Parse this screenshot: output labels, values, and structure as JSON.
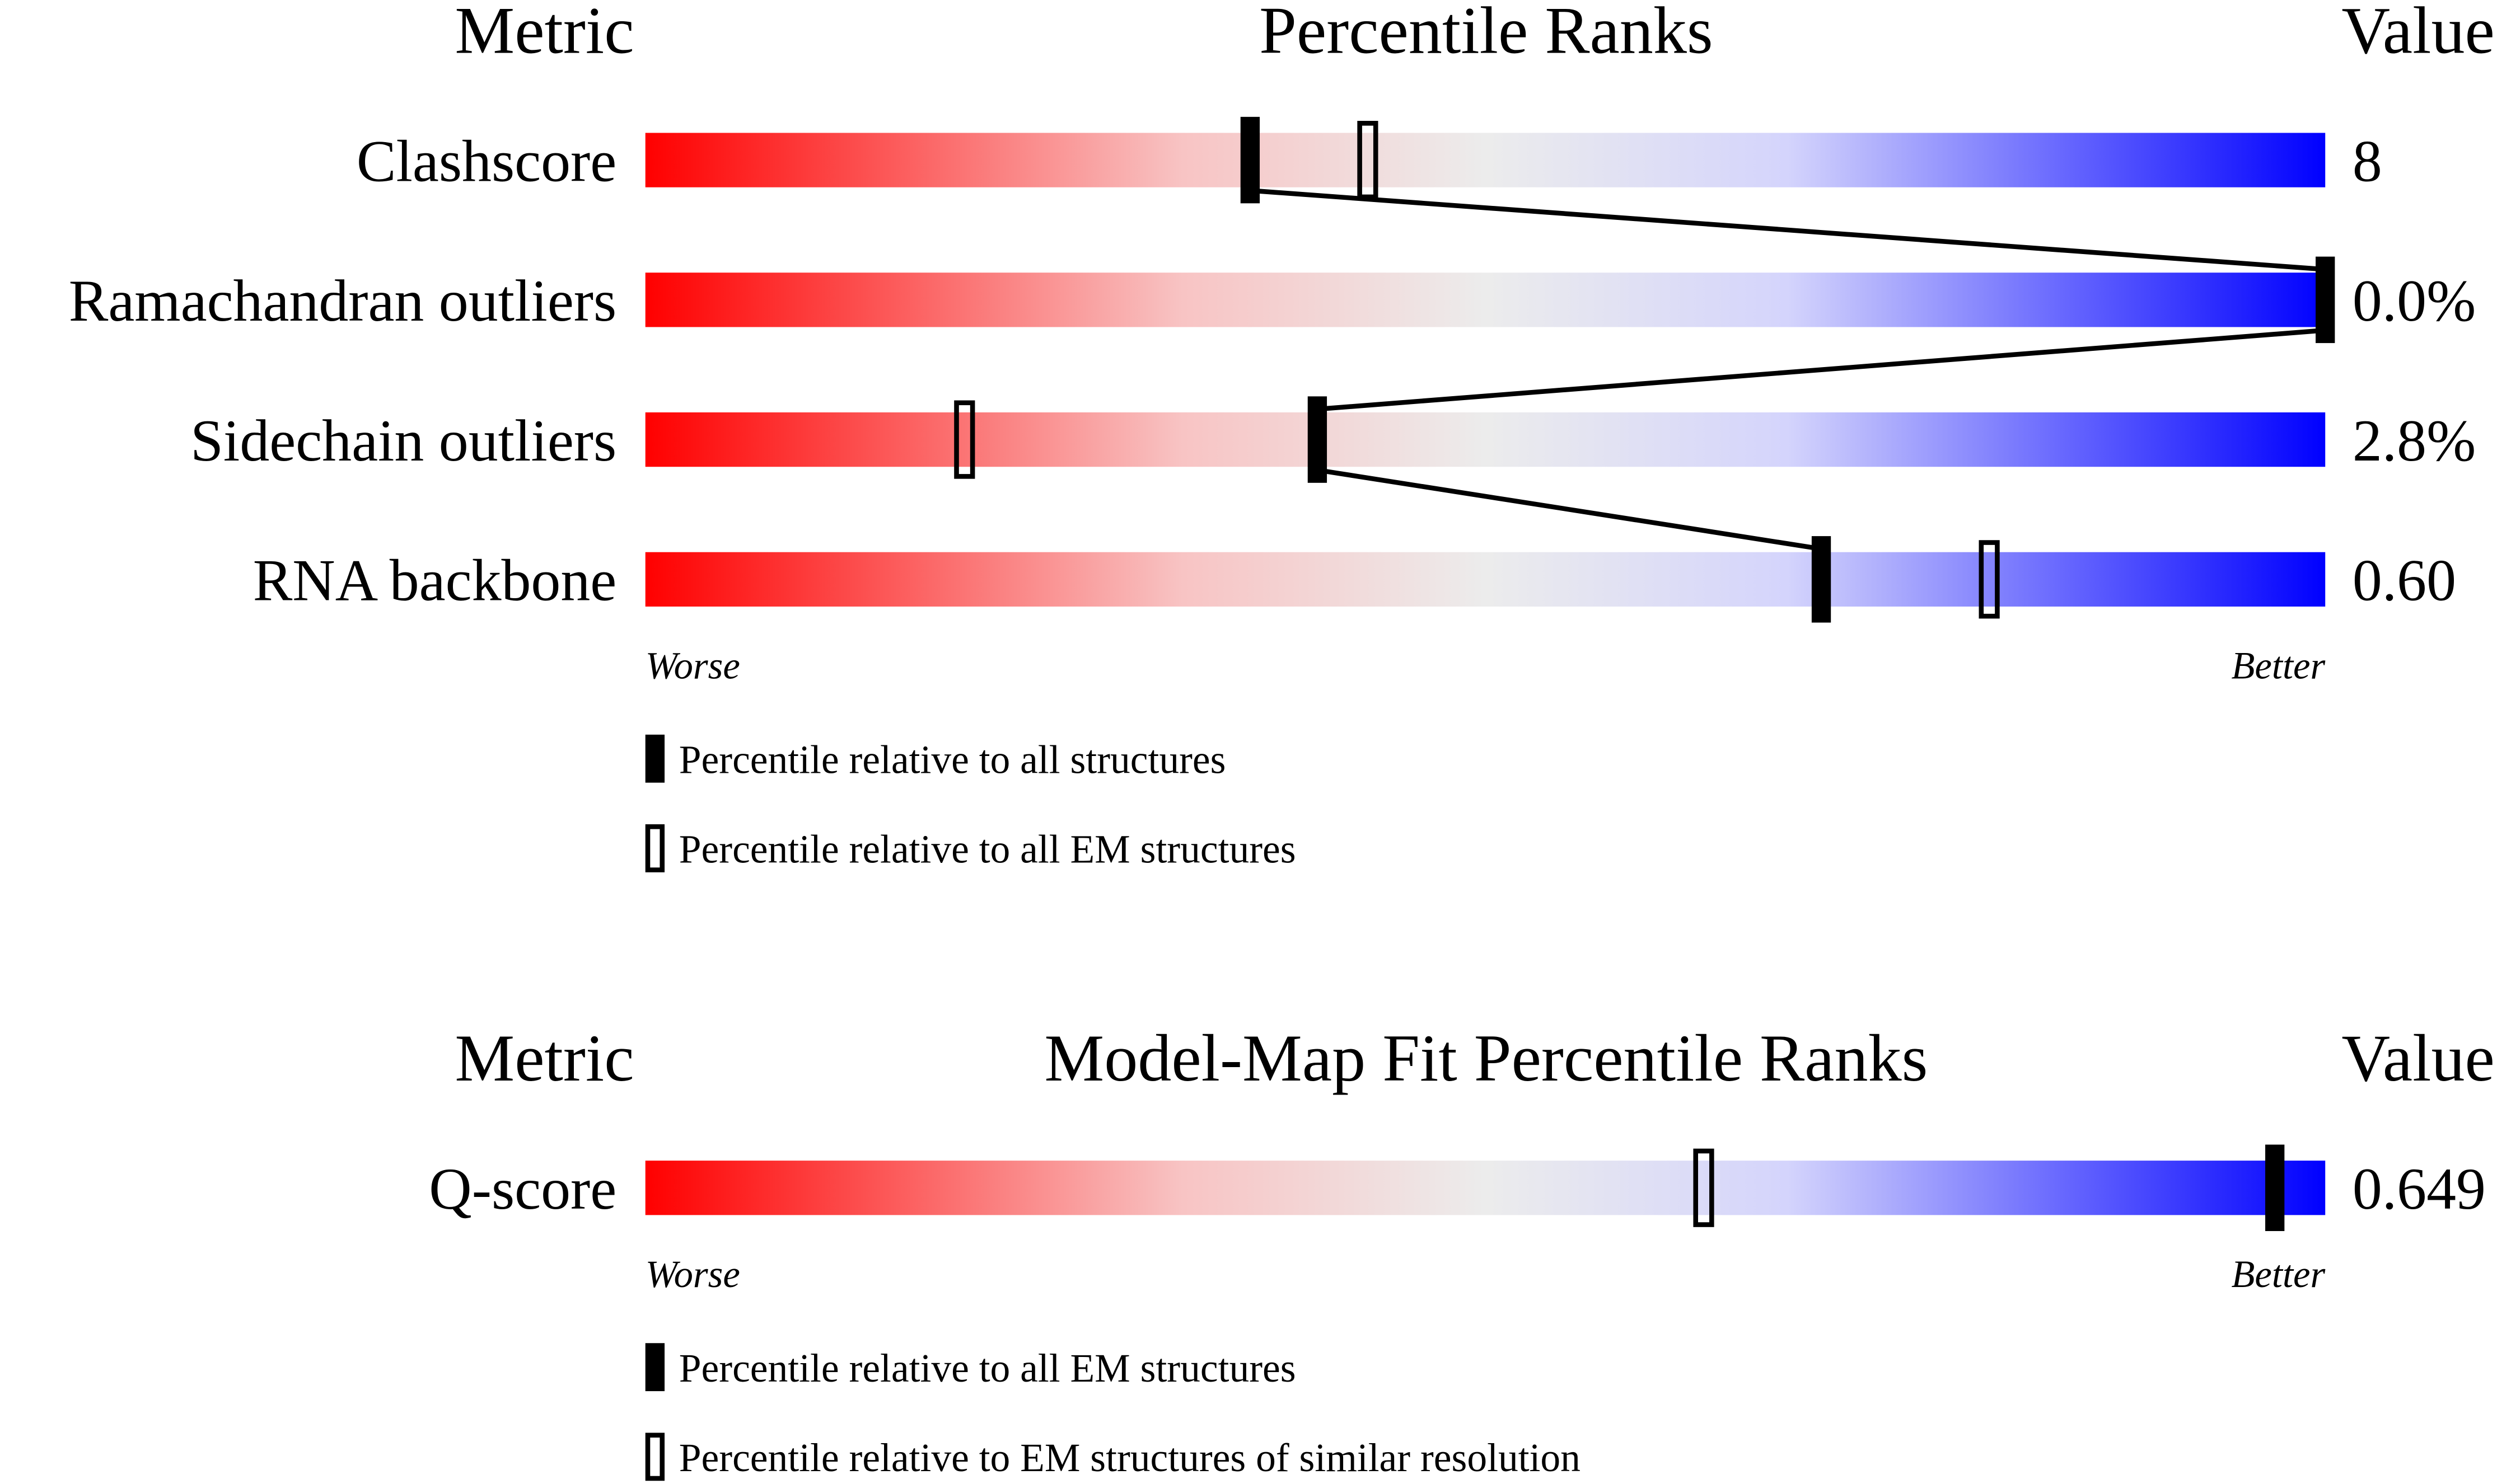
{
  "chart_data": [
    {
      "type": "percentile-slider",
      "title": "Percentile Ranks",
      "metric_header": "Metric",
      "value_header": "Value",
      "categories": [
        "Clashscore",
        "Ramachandran outliers",
        "Sidechain outliers",
        "RNA backbone"
      ],
      "metric_values": [
        "8",
        "0.0%",
        "2.8%",
        "0.60"
      ],
      "series": [
        {
          "name": "Percentile relative to all structures",
          "style": "filled",
          "color": "#000000",
          "values": [
            36,
            100,
            40,
            70
          ]
        },
        {
          "name": "Percentile relative to all EM structures",
          "style": "outline",
          "color": "#000000",
          "values": [
            43,
            null,
            19,
            80
          ]
        }
      ],
      "xlim": [
        0,
        100
      ],
      "x_low_label": "Worse",
      "x_high_label": "Better"
    },
    {
      "type": "percentile-slider",
      "title": "Model-Map Fit Percentile Ranks",
      "metric_header": "Metric",
      "value_header": "Value",
      "categories": [
        "Q-score"
      ],
      "metric_values": [
        "0.649"
      ],
      "series": [
        {
          "name": "Percentile relative to all EM structures",
          "style": "filled",
          "color": "#000000",
          "values": [
            97
          ]
        },
        {
          "name": "Percentile relative to EM structures of similar resolution",
          "style": "outline",
          "color": "#000000",
          "values": [
            63
          ]
        }
      ],
      "xlim": [
        0,
        100
      ],
      "x_low_label": "Worse",
      "x_high_label": "Better"
    }
  ]
}
